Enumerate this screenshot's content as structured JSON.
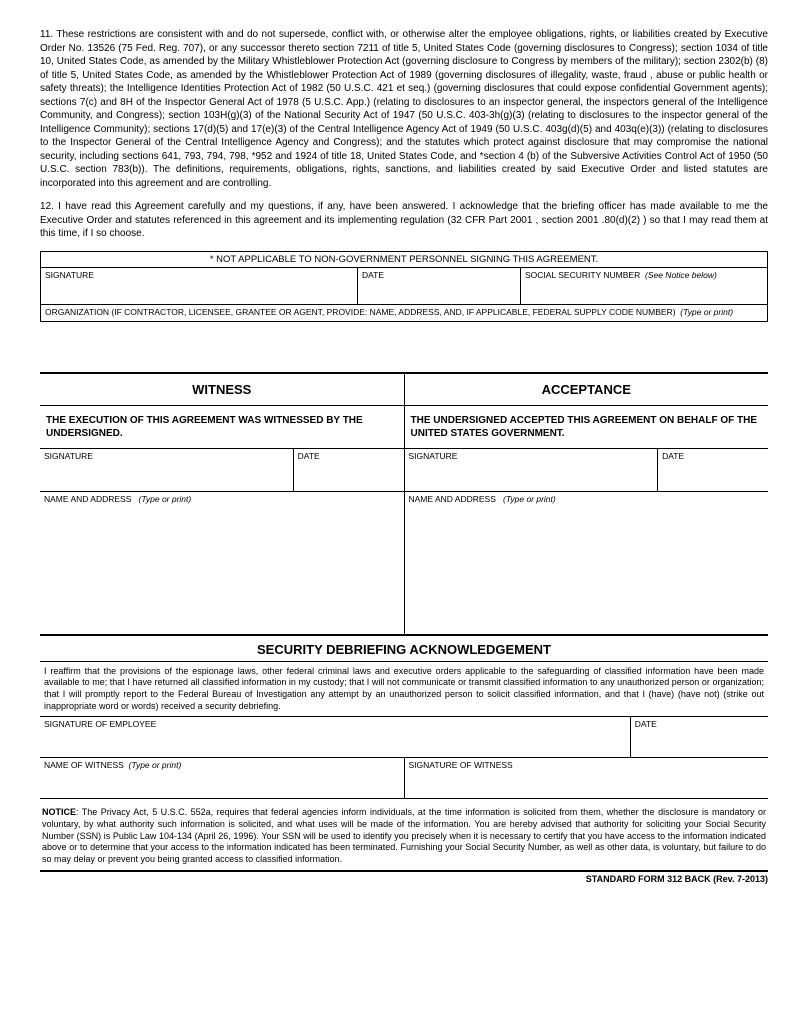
{
  "para11": "11. These restrictions are consistent with and do not supersede, conflict with, or otherwise alter the employee obligations, rights, or liabilities created by Executive Order No. 13526 (75 Fed. Reg. 707), or any successor thereto section 7211 of title 5, United States Code (governing disclosures to Congress); section 1034 of title 10, United States Code, as amended by the Military Whistleblower Protection Act (governing disclosure to Congress by members of the military); section 2302(b) (8) of title 5, United States Code, as amended by the Whistleblower Protection Act of 1989 (governing disclosures of illegality, waste, fraud , abuse or public health or safety threats); the Intelligence Identities Protection Act of 1982 (50 U.S.C. 421 et seq.) (governing disclosures that could expose confidential Government agents); sections 7(c) and 8H of the Inspector General Act of 1978 (5 U.S.C. App.) (relating to disclosures to an inspector general, the inspectors general of the Intelligence Community, and Congress); section 103H(g)(3) of the National Security Act of 1947 (50 U.S.C. 403-3h(g)(3) (relating to disclosures to the inspector general of the Intelligence Community); sections 17(d)(5) and 17(e)(3) of the Central Intelligence Agency Act of 1949 (50 U.S.C. 403g(d)(5) and 403q(e)(3)) (relating to disclosures to the Inspector General of the Central Intelligence Agency and Congress); and the statutes which protect against disclosure that may compromise the national security, including sections 641, 793, 794, 798, *952 and 1924 of title 18, United States Code, and *section 4 (b) of the Subversive Activities Control Act of 1950 (50 U.S.C. section 783(b)). The definitions, requirements, obligations, rights, sanctions, and liabilities created by said Executive Order and listed statutes are incorporated into this agreement and are controlling.",
  "para12": "12. I have read this Agreement carefully and my questions, if any, have been answered. I acknowledge that the briefing officer has made available to me the Executive Order and statutes referenced in this agreement and its implementing regulation (32 CFR Part 2001 , section 2001 .80(d)(2) ) so that I may read them at this time, if I so choose.",
  "notApplicable": "* NOT APPLICABLE TO NON-GOVERNMENT PERSONNEL SIGNING THIS AGREEMENT.",
  "labels": {
    "signature": "SIGNATURE",
    "date": "DATE",
    "ssn": "SOCIAL SECURITY NUMBER",
    "ssnNote": "(See Notice below)",
    "org": "ORGANIZATION (IF CONTRACTOR, LICENSEE, GRANTEE OR AGENT, PROVIDE:  NAME, ADDRESS, AND, IF APPLICABLE, FEDERAL SUPPLY CODE NUMBER)",
    "typeOrPrint": "(Type or print)",
    "nameAndAddress": "NAME AND ADDRESS",
    "sigOfEmployee": "SIGNATURE OF EMPLOYEE",
    "nameOfWitness": "NAME OF WITNESS",
    "sigOfWitness": "SIGNATURE OF WITNESS"
  },
  "witness": {
    "header": "WITNESS",
    "sub": "THE EXECUTION OF THIS AGREEMENT WAS WITNESSED BY THE UNDERSIGNED."
  },
  "acceptance": {
    "header": "ACCEPTANCE",
    "sub": "THE UNDERSIGNED ACCEPTED THIS AGREEMENT ON BEHALF OF THE UNITED STATES GOVERNMENT."
  },
  "debriefing": {
    "title": "SECURITY DEBRIEFING ACKNOWLEDGEMENT",
    "text": "I reaffirm that the provisions of the espionage laws, other federal criminal laws and executive orders applicable to the safeguarding of classified information have been made available to me; that I have returned all classified information in my custody; that I will not communicate or transmit classified information to any unauthorized person or organization; that I will promptly report to the Federal Bureau of Investigation any attempt by an unauthorized person to solicit classified information, and that I (have) (have not) (strike out inappropriate word or words) received a security debriefing."
  },
  "noticeBold": "NOTICE",
  "notice": ": The Privacy Act, 5 U.S.C. 552a, requires that federal agencies inform individuals, at the time information is solicited from them, whether the disclosure is mandatory or voluntary, by what authority such information is solicited, and what uses will be made of the information. You are hereby advised that authority for soliciting your Social Security Number (SSN) is Public Law 104-134 (April 26, 1996). Your SSN will be used to identify you precisely when it is necessary to certify that you have access to the information indicated above or to determine that your access to the information indicated has been terminated. Furnishing your Social Security Number, as well as other data, is voluntary, but failure to do so may delay or prevent you being granted access to classified information.",
  "footer": "STANDARD FORM 312 BACK (Rev. 7-2013)"
}
